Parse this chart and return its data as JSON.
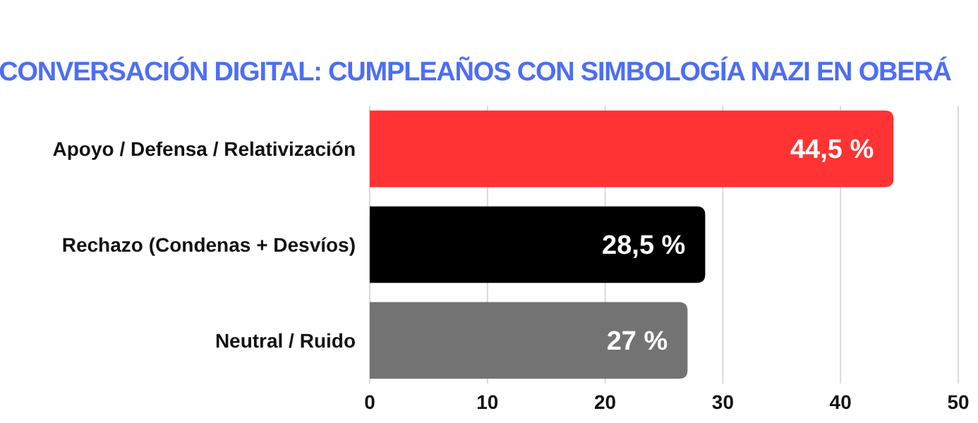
{
  "chart_data": {
    "type": "bar",
    "orientation": "horizontal",
    "title": "CONVERSACIÓN DIGITAL: CUMPLEAÑOS CON SIMBOLOGÍA NAZI EN OBERÁ",
    "categories": [
      "Apoyo / Defensa / Relativización",
      "Rechazo (Condenas + Desvíos)",
      "Neutral / Ruido"
    ],
    "values": [
      44.5,
      28.5,
      27
    ],
    "colors": [
      "#ff3333",
      "#000000",
      "#737373"
    ],
    "value_labels": [
      "44,5 %",
      "28,5 %",
      "27 %"
    ],
    "xlim": [
      0,
      50
    ],
    "xticks": [
      0,
      10,
      20,
      30,
      40,
      50
    ],
    "grid": "x"
  }
}
